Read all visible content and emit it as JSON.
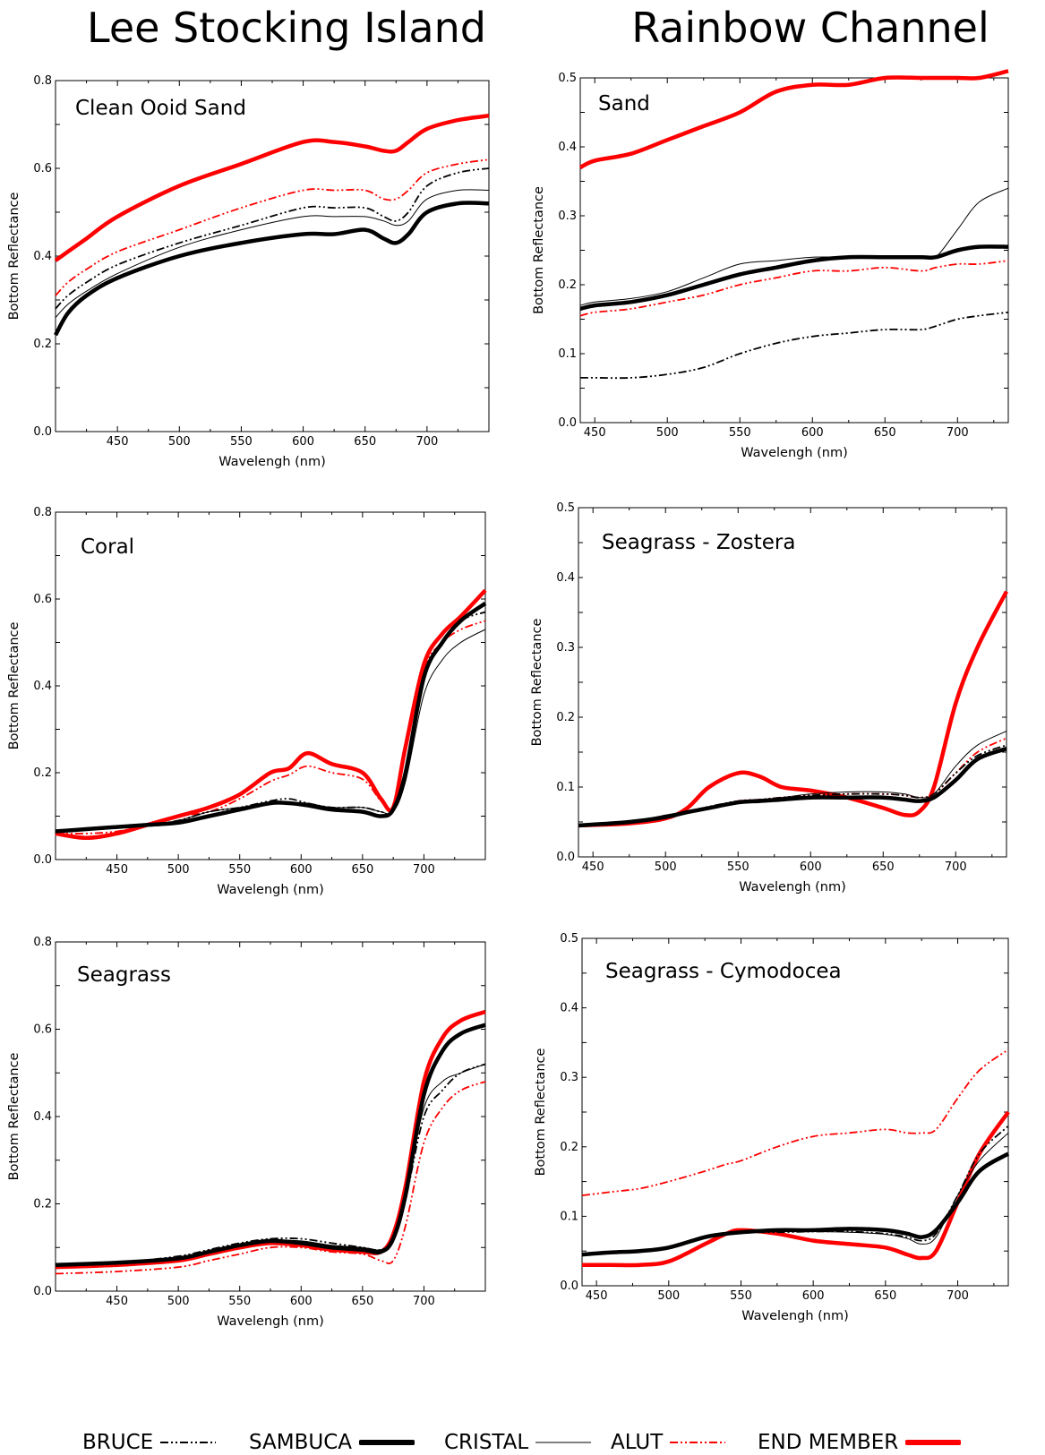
{
  "column_titles": {
    "left": "Lee Stocking Island",
    "right": "Rainbow Channel"
  },
  "legend": [
    {
      "label": "BRUCE",
      "color": "#000000",
      "style": "dash-dot-dot",
      "key": "bruce"
    },
    {
      "label": "SAMBUCA",
      "color": "#000000",
      "style": "thick",
      "key": "sambuca"
    },
    {
      "label": "CRISTAL",
      "color": "#000000",
      "style": "thin",
      "key": "cristal"
    },
    {
      "label": "ALUT",
      "color": "#ff0000",
      "style": "dash-dot-dot",
      "key": "alut"
    },
    {
      "label": "END MEMBER",
      "color": "#ff0000",
      "style": "thick",
      "key": "endmember"
    }
  ],
  "chart_data": [
    {
      "type": "line",
      "title": "Clean Ooid Sand",
      "xlabel": "Wavelengh (nm)",
      "ylabel": "Bottom Reflectance",
      "xlim": [
        400,
        750
      ],
      "ylim": [
        0.0,
        0.8
      ],
      "xticks": [
        "450",
        "500",
        "550",
        "600",
        "650",
        "700"
      ],
      "yticks": [
        "0.0",
        "0.2",
        "0.4",
        "0.6",
        "0.8"
      ],
      "x": [
        400,
        410,
        425,
        450,
        500,
        550,
        600,
        625,
        650,
        665,
        675,
        685,
        700,
        725,
        750
      ],
      "series": [
        {
          "key": "endmember",
          "values": [
            0.39,
            0.41,
            0.44,
            0.49,
            0.56,
            0.61,
            0.66,
            0.66,
            0.65,
            0.64,
            0.64,
            0.66,
            0.69,
            0.71,
            0.72
          ]
        },
        {
          "key": "alut",
          "values": [
            0.31,
            0.34,
            0.37,
            0.41,
            0.46,
            0.51,
            0.55,
            0.55,
            0.55,
            0.53,
            0.53,
            0.55,
            0.59,
            0.61,
            0.62
          ]
        },
        {
          "key": "bruce",
          "values": [
            0.28,
            0.31,
            0.34,
            0.38,
            0.43,
            0.47,
            0.51,
            0.51,
            0.51,
            0.49,
            0.48,
            0.5,
            0.56,
            0.59,
            0.6
          ]
        },
        {
          "key": "cristal",
          "values": [
            0.26,
            0.29,
            0.32,
            0.36,
            0.42,
            0.46,
            0.49,
            0.49,
            0.49,
            0.48,
            0.47,
            0.48,
            0.53,
            0.55,
            0.55
          ]
        },
        {
          "key": "sambuca",
          "values": [
            0.22,
            0.27,
            0.31,
            0.35,
            0.4,
            0.43,
            0.45,
            0.45,
            0.46,
            0.44,
            0.43,
            0.45,
            0.5,
            0.52,
            0.52
          ]
        }
      ]
    },
    {
      "type": "line",
      "title": "Sand",
      "xlabel": "Wavelengh (nm)",
      "ylabel": "Bottom Reflectance",
      "xlim": [
        440,
        735
      ],
      "ylim": [
        0.0,
        0.5
      ],
      "xticks": [
        "450",
        "500",
        "550",
        "600",
        "650",
        "700"
      ],
      "yticks": [
        "0.0",
        "0.1",
        "0.2",
        "0.3",
        "0.4",
        "0.5"
      ],
      "x": [
        440,
        450,
        475,
        500,
        525,
        550,
        575,
        600,
        625,
        650,
        675,
        685,
        700,
        715,
        735
      ],
      "series": [
        {
          "key": "endmember",
          "values": [
            0.37,
            0.38,
            0.39,
            0.41,
            0.43,
            0.45,
            0.48,
            0.49,
            0.49,
            0.5,
            0.5,
            0.5,
            0.5,
            0.5,
            0.51
          ]
        },
        {
          "key": "cristal",
          "values": [
            0.17,
            0.175,
            0.18,
            0.19,
            0.21,
            0.23,
            0.235,
            0.24,
            0.24,
            0.24,
            0.24,
            0.24,
            0.28,
            0.32,
            0.34
          ]
        },
        {
          "key": "sambuca",
          "values": [
            0.165,
            0.17,
            0.175,
            0.185,
            0.2,
            0.215,
            0.225,
            0.235,
            0.24,
            0.24,
            0.24,
            0.24,
            0.25,
            0.255,
            0.255
          ]
        },
        {
          "key": "alut",
          "values": [
            0.155,
            0.16,
            0.165,
            0.175,
            0.185,
            0.2,
            0.21,
            0.22,
            0.22,
            0.225,
            0.22,
            0.225,
            0.23,
            0.23,
            0.235
          ]
        },
        {
          "key": "bruce",
          "values": [
            0.065,
            0.065,
            0.065,
            0.07,
            0.08,
            0.1,
            0.115,
            0.125,
            0.13,
            0.135,
            0.135,
            0.14,
            0.15,
            0.155,
            0.16
          ]
        }
      ]
    },
    {
      "type": "line",
      "title": "Coral",
      "xlabel": "Wavelengh (nm)",
      "ylabel": "Bottom Reflectance",
      "xlim": [
        400,
        750
      ],
      "ylim": [
        0.0,
        0.8
      ],
      "xticks": [
        "450",
        "500",
        "550",
        "600",
        "650",
        "700"
      ],
      "yticks": [
        "0.0",
        "0.2",
        "0.4",
        "0.6",
        "0.8"
      ],
      "x": [
        400,
        425,
        450,
        475,
        500,
        525,
        550,
        575,
        590,
        605,
        625,
        650,
        665,
        675,
        685,
        700,
        715,
        730,
        750
      ],
      "series": [
        {
          "key": "endmember",
          "values": [
            0.06,
            0.05,
            0.06,
            0.08,
            0.1,
            0.12,
            0.15,
            0.2,
            0.21,
            0.245,
            0.22,
            0.2,
            0.14,
            0.12,
            0.26,
            0.45,
            0.52,
            0.56,
            0.62
          ]
        },
        {
          "key": "alut",
          "values": [
            0.06,
            0.06,
            0.065,
            0.08,
            0.1,
            0.11,
            0.14,
            0.18,
            0.195,
            0.215,
            0.2,
            0.185,
            0.135,
            0.12,
            0.26,
            0.44,
            0.5,
            0.53,
            0.55
          ]
        },
        {
          "key": "bruce",
          "values": [
            0.065,
            0.07,
            0.075,
            0.08,
            0.09,
            0.11,
            0.12,
            0.135,
            0.14,
            0.13,
            0.12,
            0.12,
            0.11,
            0.11,
            0.2,
            0.42,
            0.5,
            0.55,
            0.57
          ]
        },
        {
          "key": "cristal",
          "values": [
            0.065,
            0.07,
            0.075,
            0.08,
            0.09,
            0.11,
            0.12,
            0.13,
            0.13,
            0.13,
            0.12,
            0.12,
            0.11,
            0.11,
            0.18,
            0.38,
            0.46,
            0.5,
            0.53
          ]
        },
        {
          "key": "sambuca",
          "values": [
            0.065,
            0.07,
            0.075,
            0.08,
            0.085,
            0.1,
            0.115,
            0.13,
            0.13,
            0.125,
            0.115,
            0.11,
            0.1,
            0.115,
            0.2,
            0.42,
            0.5,
            0.55,
            0.59
          ]
        }
      ]
    },
    {
      "type": "line",
      "title": "Seagrass - Zostera",
      "xlabel": "Wavelengh (nm)",
      "ylabel": "Bottom Reflectance",
      "xlim": [
        440,
        735
      ],
      "ylim": [
        0.0,
        0.5
      ],
      "xticks": [
        "450",
        "500",
        "550",
        "600",
        "650",
        "700"
      ],
      "yticks": [
        "0.0",
        "0.1",
        "0.2",
        "0.3",
        "0.4",
        "0.5"
      ],
      "x": [
        440,
        475,
        500,
        515,
        530,
        550,
        565,
        580,
        600,
        625,
        650,
        665,
        675,
        685,
        700,
        715,
        735
      ],
      "series": [
        {
          "key": "endmember",
          "values": [
            0.045,
            0.048,
            0.055,
            0.07,
            0.1,
            0.12,
            0.115,
            0.1,
            0.095,
            0.085,
            0.07,
            0.06,
            0.065,
            0.1,
            0.22,
            0.3,
            0.38
          ]
        },
        {
          "key": "cristal",
          "values": [
            0.045,
            0.05,
            0.06,
            0.065,
            0.07,
            0.08,
            0.082,
            0.085,
            0.09,
            0.093,
            0.093,
            0.09,
            0.085,
            0.09,
            0.13,
            0.16,
            0.18
          ]
        },
        {
          "key": "alut",
          "values": [
            0.045,
            0.05,
            0.055,
            0.065,
            0.07,
            0.08,
            0.082,
            0.085,
            0.088,
            0.09,
            0.09,
            0.088,
            0.085,
            0.09,
            0.12,
            0.15,
            0.17
          ]
        },
        {
          "key": "bruce",
          "values": [
            0.045,
            0.05,
            0.058,
            0.065,
            0.072,
            0.08,
            0.082,
            0.085,
            0.088,
            0.09,
            0.09,
            0.088,
            0.085,
            0.09,
            0.12,
            0.145,
            0.16
          ]
        },
        {
          "key": "sambuca",
          "values": [
            0.045,
            0.05,
            0.057,
            0.064,
            0.07,
            0.078,
            0.08,
            0.082,
            0.085,
            0.085,
            0.085,
            0.082,
            0.08,
            0.085,
            0.11,
            0.14,
            0.155
          ]
        }
      ]
    },
    {
      "type": "line",
      "title": "Seagrass",
      "xlabel": "Wavelengh (nm)",
      "ylabel": "Bottom Reflectance",
      "xlim": [
        400,
        750
      ],
      "ylim": [
        0.0,
        0.8
      ],
      "xticks": [
        "450",
        "500",
        "550",
        "600",
        "650",
        "700"
      ],
      "yticks": [
        "0.0",
        "0.2",
        "0.4",
        "0.6",
        "0.8"
      ],
      "x": [
        400,
        450,
        500,
        525,
        550,
        575,
        600,
        625,
        650,
        665,
        675,
        685,
        700,
        715,
        730,
        750
      ],
      "series": [
        {
          "key": "endmember",
          "values": [
            0.055,
            0.06,
            0.07,
            0.085,
            0.1,
            0.11,
            0.105,
            0.095,
            0.09,
            0.09,
            0.13,
            0.24,
            0.48,
            0.58,
            0.62,
            0.64
          ]
        },
        {
          "key": "sambuca",
          "values": [
            0.06,
            0.065,
            0.075,
            0.09,
            0.105,
            0.115,
            0.11,
            0.1,
            0.095,
            0.09,
            0.12,
            0.22,
            0.45,
            0.55,
            0.59,
            0.61
          ]
        },
        {
          "key": "cristal",
          "values": [
            0.06,
            0.065,
            0.075,
            0.09,
            0.105,
            0.115,
            0.115,
            0.105,
            0.1,
            0.095,
            0.12,
            0.22,
            0.42,
            0.48,
            0.5,
            0.52
          ]
        },
        {
          "key": "bruce",
          "values": [
            0.06,
            0.065,
            0.08,
            0.095,
            0.11,
            0.12,
            0.12,
            0.11,
            0.1,
            0.095,
            0.12,
            0.21,
            0.4,
            0.46,
            0.5,
            0.52
          ]
        },
        {
          "key": "alut",
          "values": [
            0.04,
            0.045,
            0.055,
            0.07,
            0.085,
            0.1,
            0.1,
            0.09,
            0.085,
            0.07,
            0.07,
            0.15,
            0.34,
            0.42,
            0.46,
            0.48
          ]
        }
      ]
    },
    {
      "type": "line",
      "title": "Seagrass - Cymodocea",
      "xlabel": "Wavelengh (nm)",
      "ylabel": "Bottom Reflectance",
      "xlim": [
        440,
        735
      ],
      "ylim": [
        0.0,
        0.5
      ],
      "xticks": [
        "450",
        "500",
        "550",
        "600",
        "650",
        "700"
      ],
      "yticks": [
        "0.0",
        "0.1",
        "0.2",
        "0.3",
        "0.4",
        "0.5"
      ],
      "x": [
        440,
        460,
        480,
        500,
        525,
        540,
        550,
        575,
        600,
        625,
        650,
        665,
        675,
        685,
        700,
        715,
        735
      ],
      "series": [
        {
          "key": "alut",
          "values": [
            0.13,
            0.135,
            0.14,
            0.15,
            0.165,
            0.175,
            0.18,
            0.2,
            0.215,
            0.22,
            0.225,
            0.22,
            0.22,
            0.225,
            0.27,
            0.31,
            0.34
          ]
        },
        {
          "key": "endmember",
          "values": [
            0.03,
            0.03,
            0.03,
            0.035,
            0.06,
            0.075,
            0.08,
            0.075,
            0.065,
            0.06,
            0.055,
            0.045,
            0.04,
            0.05,
            0.12,
            0.19,
            0.25
          ]
        },
        {
          "key": "bruce",
          "values": [
            0.045,
            0.048,
            0.05,
            0.055,
            0.07,
            0.075,
            0.077,
            0.077,
            0.078,
            0.078,
            0.075,
            0.07,
            0.065,
            0.075,
            0.13,
            0.19,
            0.23
          ]
        },
        {
          "key": "cristal",
          "values": [
            0.045,
            0.048,
            0.05,
            0.055,
            0.07,
            0.075,
            0.077,
            0.078,
            0.078,
            0.077,
            0.074,
            0.068,
            0.06,
            0.07,
            0.13,
            0.18,
            0.22
          ]
        },
        {
          "key": "sambuca",
          "values": [
            0.045,
            0.048,
            0.05,
            0.055,
            0.07,
            0.075,
            0.077,
            0.08,
            0.08,
            0.082,
            0.08,
            0.075,
            0.07,
            0.08,
            0.12,
            0.165,
            0.19
          ]
        }
      ]
    }
  ]
}
